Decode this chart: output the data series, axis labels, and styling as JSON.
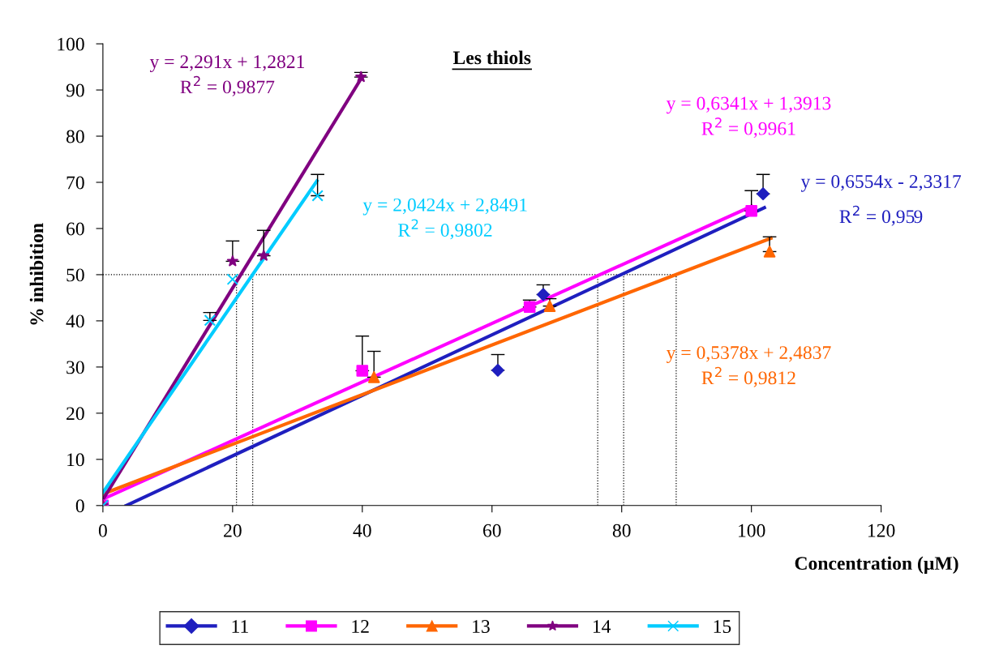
{
  "chart_data": {
    "type": "scatter",
    "title": "Les thiols",
    "xlabel": "Concentration (µM)",
    "ylabel": "% inhibition",
    "xlim": [
      0,
      120
    ],
    "ylim": [
      0,
      100
    ],
    "xticks": [
      0,
      20,
      40,
      60,
      80,
      100,
      120
    ],
    "yticks": [
      0,
      10,
      20,
      30,
      40,
      50,
      60,
      70,
      80,
      90,
      100
    ],
    "grid": false,
    "legend": "bottom",
    "series": [
      {
        "name": "11",
        "color": "#1f1fbf",
        "marker": "diamond",
        "x": [
          0,
          60.9,
          67.9,
          101.8
        ],
        "values": [
          0,
          29.3,
          45.7,
          67.5
        ],
        "errors": [
          null,
          [
            29.3,
            32.7
          ],
          [
            45.7,
            47.8
          ],
          [
            67.5,
            71.7
          ]
        ]
      },
      {
        "name": "12",
        "color": "#ff00ff",
        "marker": "square",
        "x": [
          0,
          40,
          65.8,
          100
        ],
        "values": [
          0,
          29.2,
          43,
          63.8
        ],
        "errors": [
          null,
          [
            29.2,
            36.7
          ],
          [
            43,
            44.5
          ],
          [
            63.8,
            68.2
          ]
        ]
      },
      {
        "name": "13",
        "color": "#ff6600",
        "marker": "triangle",
        "x": [
          0,
          41.8,
          68.9,
          102.8
        ],
        "values": [
          0,
          27.8,
          43.2,
          55
        ],
        "errors": [
          null,
          [
            27.8,
            33.4
          ],
          [
            43.2,
            44.8
          ],
          [
            55,
            58.2
          ]
        ]
      },
      {
        "name": "14",
        "color": "#800080",
        "marker": "star",
        "x": [
          0,
          20,
          24.8,
          39.8
        ],
        "values": [
          0,
          52.9,
          54.1,
          92.8
        ],
        "errors": [
          null,
          [
            52.9,
            57.3
          ],
          [
            54.1,
            59.6
          ],
          [
            92.8,
            93.8
          ]
        ]
      },
      {
        "name": "15",
        "color": "#00ccff",
        "marker": "cross",
        "x": [
          0,
          16.5,
          20,
          33.1
        ],
        "values": [
          0,
          40.1,
          49,
          67.1
        ],
        "errors": [
          null,
          [
            40.1,
            41.8
          ],
          null,
          [
            67.1,
            71.7
          ]
        ]
      },
      {
        "type": "line",
        "color": "#1f1fbf",
        "x": [
          3.6,
          102
        ],
        "values": [
          0,
          64.5
        ]
      },
      {
        "type": "line",
        "color": "#ff00ff",
        "x": [
          0,
          100
        ],
        "values": [
          1.4,
          64.8
        ]
      },
      {
        "type": "line",
        "color": "#ff6600",
        "x": [
          0,
          103
        ],
        "values": [
          2.5,
          57.9
        ]
      },
      {
        "type": "line",
        "color": "#800080",
        "x": [
          0,
          40
        ],
        "values": [
          1.3,
          92.9
        ]
      },
      {
        "type": "line",
        "color": "#00ccff",
        "x": [
          0,
          33
        ],
        "values": [
          2.8,
          70.3
        ]
      }
    ],
    "ref_lines": [
      {
        "axis": "y",
        "value": 50,
        "line_style": "dotted",
        "color": "#000000"
      },
      {
        "axis": "x",
        "value": 20.6,
        "line_style": "dotted",
        "color": "#000000"
      },
      {
        "axis": "x",
        "value": 23.1,
        "line_style": "dotted",
        "color": "#000000"
      },
      {
        "axis": "x",
        "value": 76.3,
        "line_style": "dotted",
        "color": "#000000"
      },
      {
        "axis": "x",
        "value": 80.3,
        "line_style": "dotted",
        "color": "#000000"
      },
      {
        "axis": "x",
        "value": 88.4,
        "line_style": "dotted",
        "color": "#000000"
      }
    ],
    "annotations": [
      "y = 0,6554x - 2,3317\nR$^{2}$ = 0,959",
      "y = 0,6341x + 1,3913\nR$^{2}$ = 0,9961",
      "y = 0,5378x + 2,4837\nR$^{2}$ = 0,9812",
      "y = 2,291x + 1,2821\nR$^{2}$ = 0,9877",
      "y = 2,0424x + 2,8491\nR$^{2}$ = 0,9802"
    ]
  }
}
